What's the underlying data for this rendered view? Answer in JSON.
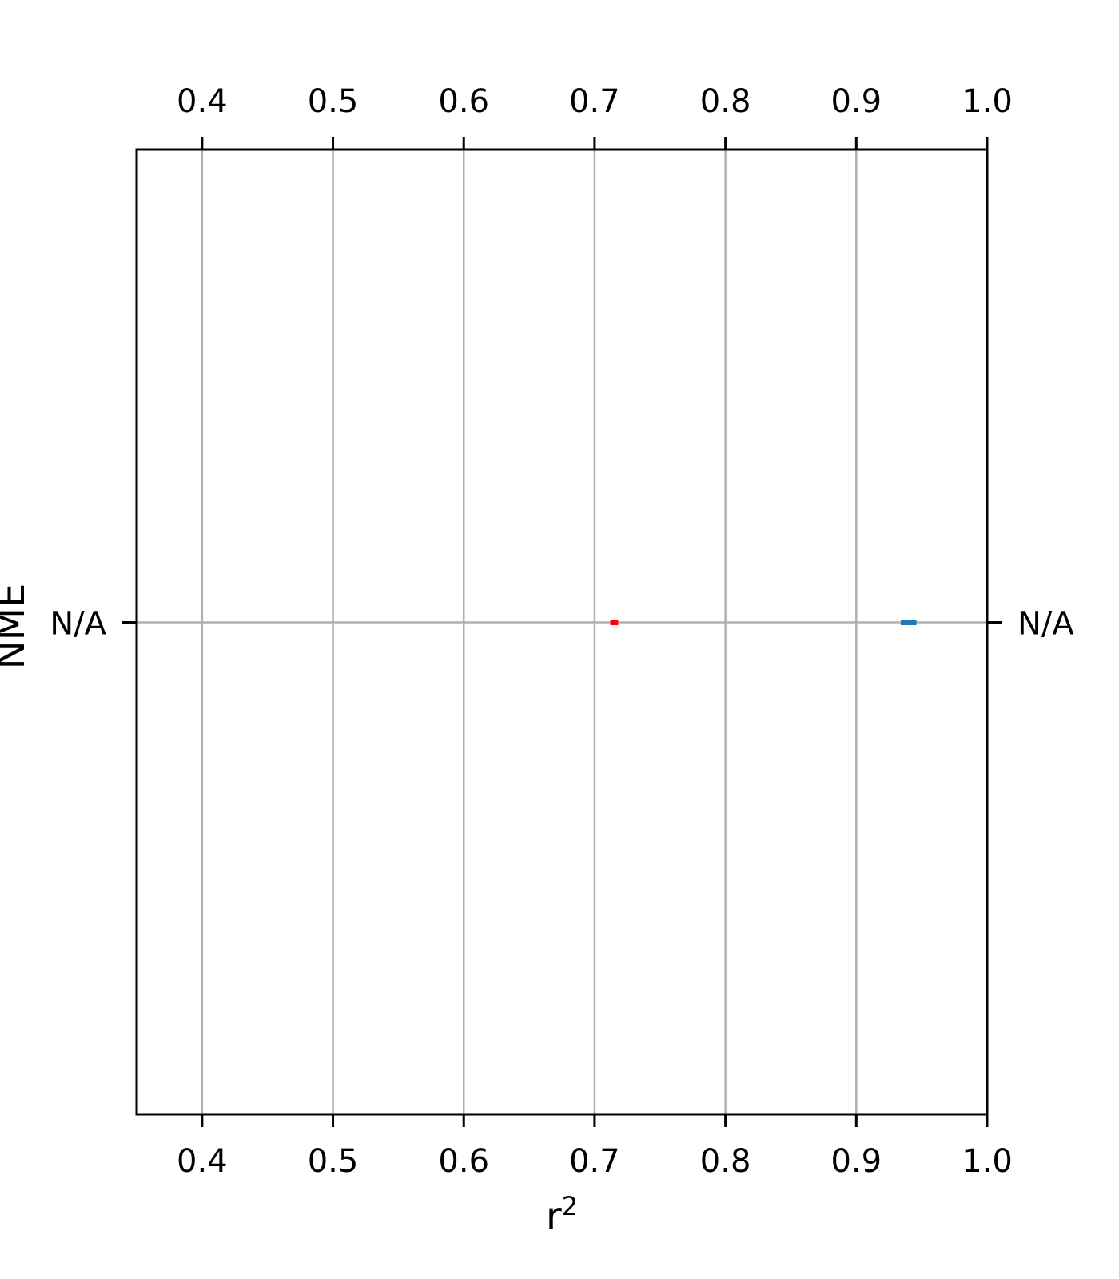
{
  "chart_data": {
    "type": "scatter",
    "title": "",
    "xlabel": "r",
    "xlabel_superscript": "2",
    "ylabel": "NME",
    "xlim": [
      0.35,
      1.0
    ],
    "xticks": [
      0.4,
      0.5,
      0.6,
      0.7,
      0.8,
      0.9,
      1.0
    ],
    "xtick_labels": [
      "0.4",
      "0.5",
      "0.6",
      "0.7",
      "0.8",
      "0.9",
      "1.0"
    ],
    "yticks": [
      "N/A"
    ],
    "grid": true,
    "x_axis_ticks": "top and bottom",
    "y_axis_ticks": "left and right",
    "series": [
      {
        "x": [
          0.715
        ],
        "y": [
          "N/A"
        ],
        "x_error": 0.003,
        "color": "#ff0000"
      },
      {
        "x": [
          0.94
        ],
        "y": [
          "N/A"
        ],
        "x_error": 0.006,
        "color": "#1f77b4"
      }
    ]
  }
}
